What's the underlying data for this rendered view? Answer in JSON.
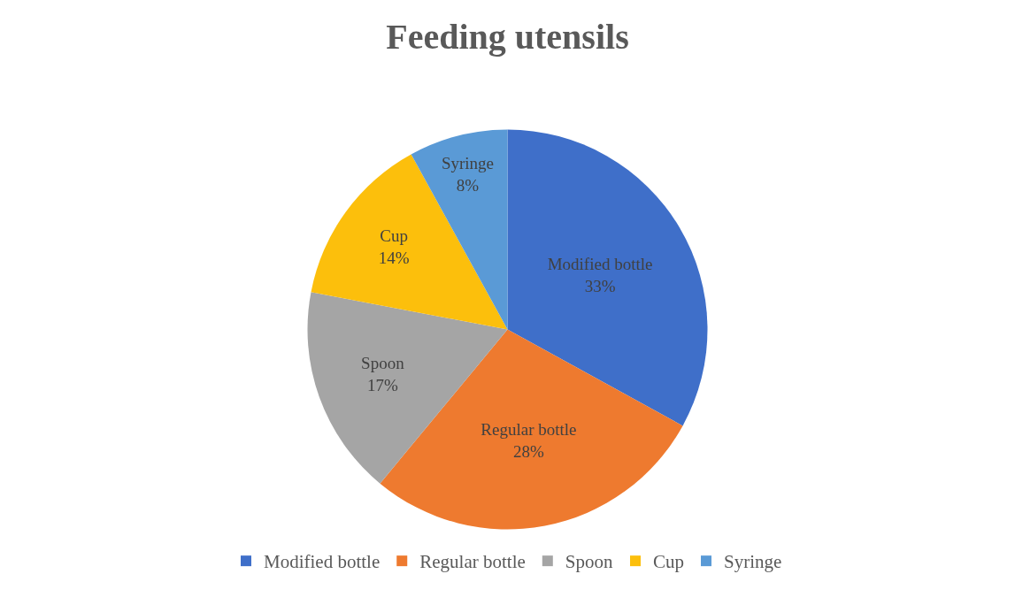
{
  "chart_data": {
    "type": "pie",
    "title": "Feeding utensils",
    "categories": [
      "Modified bottle",
      "Regular bottle",
      "Spoon",
      "Cup",
      "Syringe"
    ],
    "values": [
      33,
      28,
      17,
      14,
      8
    ],
    "value_labels": [
      "33%",
      "28%",
      "17%",
      "14%",
      "8%"
    ],
    "colors": [
      "#3f6fc9",
      "#ee7a2f",
      "#a5a5a5",
      "#fcbf0c",
      "#5a9ad6"
    ],
    "legend": "bottom"
  }
}
